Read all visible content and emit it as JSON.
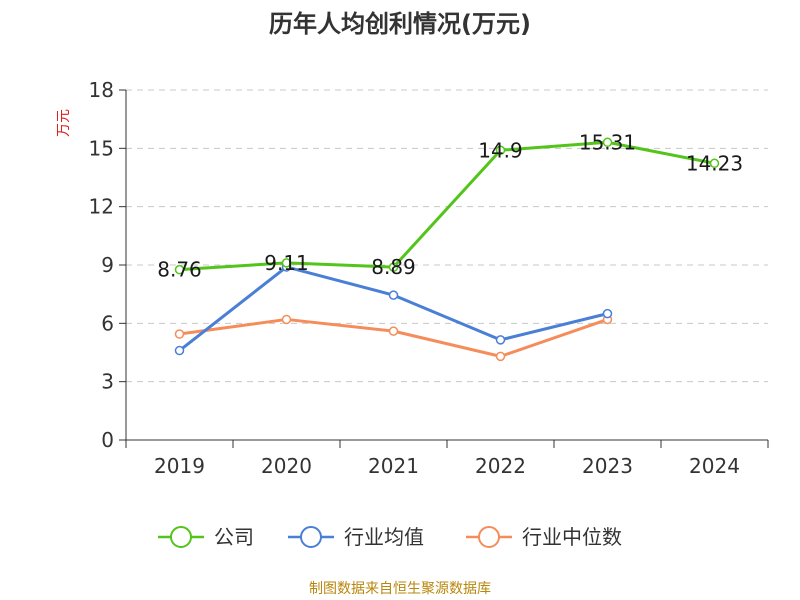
{
  "chart_data": {
    "type": "line",
    "title": "历年人均创利情况(万元)",
    "ylabel": "万元",
    "xlabel": "",
    "categories": [
      "2019",
      "2020",
      "2021",
      "2022",
      "2023",
      "2024"
    ],
    "ylim": [
      0,
      18
    ],
    "yticks": [
      0,
      3,
      6,
      9,
      12,
      15,
      18
    ],
    "grid": true,
    "legend_position": "bottom",
    "series": [
      {
        "name": "公司",
        "color": "#52c41a",
        "values": [
          8.76,
          9.11,
          8.89,
          14.9,
          15.31,
          14.23
        ],
        "labels": [
          "8.76",
          "9.11",
          "8.89",
          "14.9",
          "15.31",
          "14.23"
        ]
      },
      {
        "name": "行业均值",
        "color": "#4a7fd6",
        "values": [
          4.6,
          8.9,
          7.45,
          5.15,
          6.5,
          null
        ]
      },
      {
        "name": "行业中位数",
        "color": "#f58d5a",
        "values": [
          5.45,
          6.2,
          5.6,
          4.3,
          6.2,
          null
        ]
      }
    ]
  },
  "source": "制图数据来自恒生聚源数据库"
}
